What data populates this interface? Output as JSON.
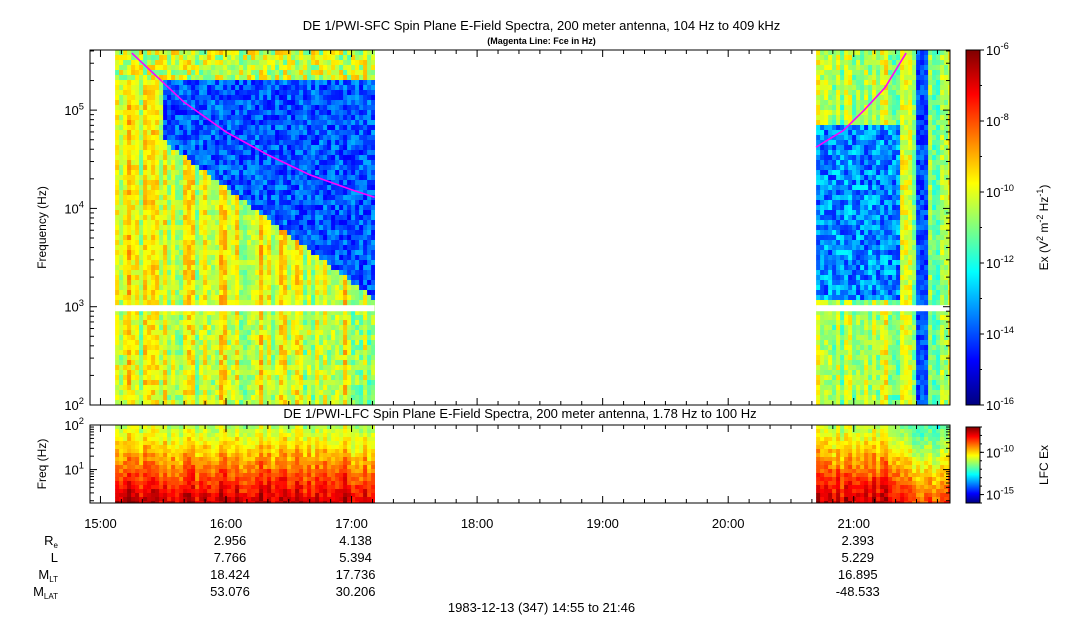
{
  "chart_data": [
    {
      "type": "heatmap",
      "title": "DE 1/PWI-SFC  Spin Plane E-Field Spectra, 200 meter antenna, 104 Hz to 409 kHz",
      "subtitle": "(Magenta Line: Fce in Hz)",
      "ylabel": "Frequency (Hz)",
      "yscale": "log",
      "ylim": [
        100,
        409000
      ],
      "yticks": [
        {
          "value": 100,
          "base": "10",
          "exp": "2"
        },
        {
          "value": 1000,
          "base": "10",
          "exp": "3"
        },
        {
          "value": 10000,
          "base": "10",
          "exp": "4"
        },
        {
          "value": 100000,
          "base": "10",
          "exp": "5"
        }
      ],
      "colorbar": {
        "label_parts": [
          "Ex (V",
          "2",
          " m",
          "-2",
          " Hz",
          "-1",
          ")"
        ],
        "scale": "log",
        "range": [
          1e-16,
          1e-06
        ],
        "ticks": [
          {
            "value": 1e-06,
            "base": "10",
            "exp": "-6"
          },
          {
            "value": 1e-08,
            "base": "10",
            "exp": "-8"
          },
          {
            "value": 1e-10,
            "base": "10",
            "exp": "-10"
          },
          {
            "value": 1e-12,
            "base": "10",
            "exp": "-12"
          },
          {
            "value": 1e-14,
            "base": "10",
            "exp": "-14"
          },
          {
            "value": 1e-16,
            "base": "10",
            "exp": "-16"
          }
        ]
      },
      "data_intervals": [
        [
          "15:07",
          "17:11"
        ],
        [
          "20:42",
          "21:46"
        ]
      ],
      "fce_line": {
        "color": "#ff00ff",
        "segment1": {
          "t": [
            "15:15",
            "15:40",
            "16:00",
            "16:20",
            "16:40",
            "17:00",
            "17:11"
          ],
          "hz": [
            380000,
            120000,
            60000,
            35000,
            22000,
            15500,
            13000
          ]
        },
        "segment2": {
          "t": [
            "20:42",
            "20:55",
            "21:05",
            "21:15",
            "21:25"
          ],
          "hz": [
            42000,
            62000,
            100000,
            170000,
            380000
          ]
        }
      }
    },
    {
      "type": "heatmap",
      "title": "DE 1/PWI-LFC  Spin Plane E-Field Spectra, 200 meter antenna, 1.78 Hz to 100 Hz",
      "ylabel": "Freq (Hz)",
      "yscale": "log",
      "ylim": [
        1.78,
        100
      ],
      "yticks": [
        {
          "value": 10,
          "base": "10",
          "exp": "1"
        },
        {
          "value": 100,
          "base": "10",
          "exp": "2"
        }
      ],
      "colorbar": {
        "label": "LFC Ex",
        "scale": "log",
        "range": [
          1e-16,
          1e-07
        ],
        "ticks": [
          {
            "value": 1e-10,
            "base": "10",
            "exp": "-10"
          },
          {
            "value": 1e-15,
            "base": "10",
            "exp": "-15"
          }
        ]
      },
      "data_intervals": [
        [
          "15:07",
          "17:11"
        ],
        [
          "20:42",
          "21:46"
        ]
      ]
    }
  ],
  "time_axis": {
    "range": [
      "14:55",
      "21:46"
    ],
    "major_ticks": [
      "15:00",
      "16:00",
      "17:00",
      "18:00",
      "19:00",
      "20:00",
      "21:00"
    ],
    "minor_interval_min": 10
  },
  "ephemeris": {
    "rows": [
      {
        "label": "R",
        "sub": "e"
      },
      {
        "label": "L",
        "sub": ""
      },
      {
        "label": "M",
        "sub": "LT"
      },
      {
        "label": "M",
        "sub": "LAT"
      }
    ],
    "columns": [
      {
        "time": "16:00",
        "values": [
          "2.956",
          "7.766",
          "18.424",
          "53.076"
        ]
      },
      {
        "time": "17:00",
        "values": [
          "4.138",
          "5.394",
          "17.736",
          "30.206"
        ]
      },
      {
        "time": "21:00",
        "values": [
          "2.393",
          "5.229",
          "16.895",
          "-48.533"
        ]
      }
    ]
  },
  "footer": "1983-12-13 (347) 14:55 to 21:46",
  "colors": {
    "background": "#ffffff",
    "fce": "#ff00ff",
    "gap": "#ffffff"
  }
}
